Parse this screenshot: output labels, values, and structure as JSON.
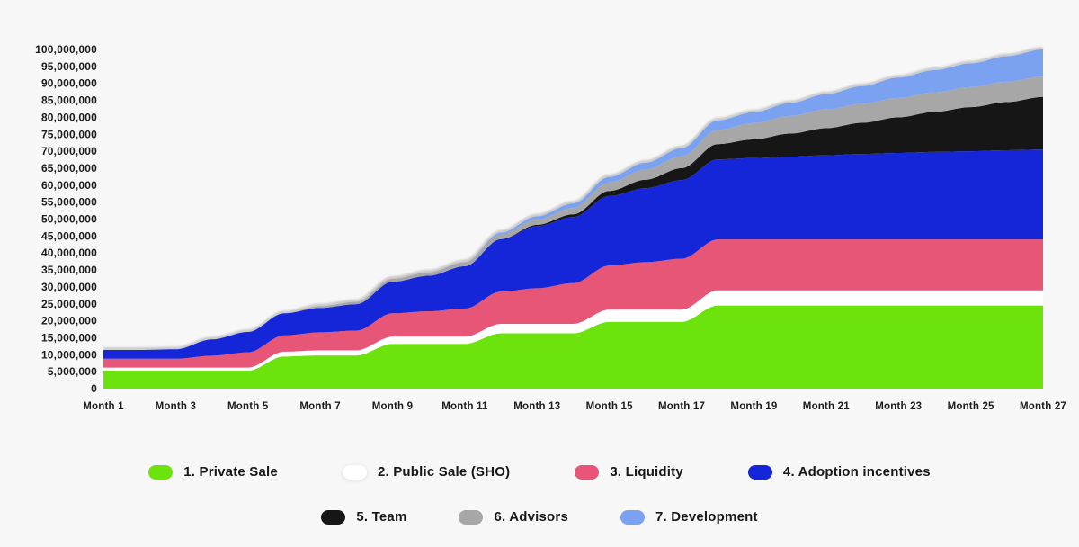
{
  "colors": {
    "background": "#f7f7f8",
    "axis_text": "#1c1c1e",
    "stack_shadow": "#8f8f8f"
  },
  "chart_data": {
    "type": "area",
    "stacked": true,
    "grid": false,
    "legend_position": "bottom",
    "xlabel": "",
    "ylabel": "",
    "ylim": [
      0,
      100000000
    ],
    "y_tick_step": 5000000,
    "y_tick_labels": [
      "0",
      "5,000,000",
      "10,000,000",
      "15,000,000",
      "20,000,000",
      "25,000,000",
      "30,000,000",
      "35,000,000",
      "40,000,000",
      "45,000,000",
      "50,000,000",
      "55,000,000",
      "60,000,000",
      "65,000,000",
      "70,000,000",
      "75,000,000",
      "80,000,000",
      "85,000,000",
      "90,000,000",
      "95,000,000",
      "100,000,000"
    ],
    "x": [
      1,
      2,
      3,
      4,
      5,
      6,
      7,
      8,
      9,
      10,
      11,
      12,
      13,
      14,
      15,
      16,
      17,
      18,
      19,
      20,
      21,
      22,
      23,
      24,
      25,
      26,
      27
    ],
    "x_ticks": [
      {
        "month": 1,
        "label": "Month 1"
      },
      {
        "month": 3,
        "label": "Month 3"
      },
      {
        "month": 5,
        "label": "Month 5"
      },
      {
        "month": 7,
        "label": "Month 7"
      },
      {
        "month": 9,
        "label": "Month 9"
      },
      {
        "month": 11,
        "label": "Month 11"
      },
      {
        "month": 13,
        "label": "Month 13"
      },
      {
        "month": 15,
        "label": "Month 15"
      },
      {
        "month": 17,
        "label": "Month 17"
      },
      {
        "month": 19,
        "label": "Month 19"
      },
      {
        "month": 21,
        "label": "Month 21"
      },
      {
        "month": 23,
        "label": "Month 23"
      },
      {
        "month": 25,
        "label": "Month 25"
      },
      {
        "month": 27,
        "label": "Month 27"
      }
    ],
    "series": [
      {
        "name": "1. Private Sale",
        "slug": "private-sale",
        "color": "#6de30d",
        "values": [
          5300000,
          5300000,
          5300000,
          5300000,
          5300000,
          9500000,
          9800000,
          9800000,
          13200000,
          13200000,
          13200000,
          16300000,
          16300000,
          16300000,
          19700000,
          19700000,
          19700000,
          24500000,
          24500000,
          24500000,
          24500000,
          24500000,
          24500000,
          24500000,
          24500000,
          24500000,
          24500000
        ]
      },
      {
        "name": "2. Public Sale (SHO)",
        "slug": "public-sale-sho",
        "color": "#ffffff",
        "values": [
          900000,
          900000,
          900000,
          900000,
          900000,
          1400000,
          1500000,
          1500000,
          2100000,
          2100000,
          2100000,
          2800000,
          2800000,
          2800000,
          3600000,
          3600000,
          3600000,
          4500000,
          4500000,
          4500000,
          4500000,
          4500000,
          4500000,
          4500000,
          4500000,
          4500000,
          4500000
        ]
      },
      {
        "name": "3. Liquidity",
        "slug": "liquidity",
        "color": "#e75677",
        "values": [
          2600000,
          2600000,
          2600000,
          3500000,
          4500000,
          4800000,
          5300000,
          5800000,
          6900000,
          7500000,
          8300000,
          9500000,
          10500000,
          12000000,
          13000000,
          14000000,
          15000000,
          15000000,
          15000000,
          15000000,
          15000000,
          15000000,
          15000000,
          15000000,
          15000000,
          15000000,
          15000000
        ]
      },
      {
        "name": "4. Adoption incentives",
        "slug": "adoption-incentives",
        "color": "#1526d8",
        "values": [
          2600000,
          2600000,
          2800000,
          4800000,
          6000000,
          6500000,
          7200000,
          7800000,
          9300000,
          10500000,
          12500000,
          15500000,
          18300000,
          19500000,
          20500000,
          21800000,
          23200000,
          23600000,
          24000000,
          24400000,
          24800000,
          25200000,
          25500000,
          25800000,
          26000000,
          26300000,
          26500000
        ]
      },
      {
        "name": "5. Team",
        "slug": "team",
        "color": "#161616",
        "values": [
          0,
          0,
          0,
          0,
          0,
          0,
          0,
          0,
          0,
          0,
          0,
          0,
          400000,
          800000,
          1500000,
          2500000,
          3500000,
          4500000,
          5500000,
          6800000,
          8000000,
          9200000,
          10500000,
          11800000,
          13000000,
          14200000,
          15500000
        ]
      },
      {
        "name": "6. Advisors",
        "slug": "advisors",
        "color": "#a7a7a7",
        "values": [
          0,
          0,
          0,
          0,
          0,
          0,
          500000,
          700000,
          900000,
          1000000,
          1200000,
          1400000,
          1600000,
          1900000,
          2500000,
          3000000,
          3500000,
          4200000,
          4800000,
          5200000,
          5500000,
          5600000,
          5700000,
          5800000,
          5900000,
          6000000,
          6000000
        ]
      },
      {
        "name": "7. Development",
        "slug": "development",
        "color": "#7ba1f1",
        "values": [
          0,
          0,
          0,
          0,
          0,
          0,
          0,
          0,
          0,
          0,
          0,
          500000,
          900000,
          1300000,
          1600000,
          2000000,
          2400000,
          2800000,
          3200000,
          3800000,
          4500000,
          5200000,
          6000000,
          6500000,
          7000000,
          7500000,
          8000000
        ]
      }
    ]
  },
  "legend": {
    "row_1_indices": [
      0,
      1,
      2,
      3
    ],
    "row_2_indices": [
      4,
      5,
      6
    ]
  }
}
